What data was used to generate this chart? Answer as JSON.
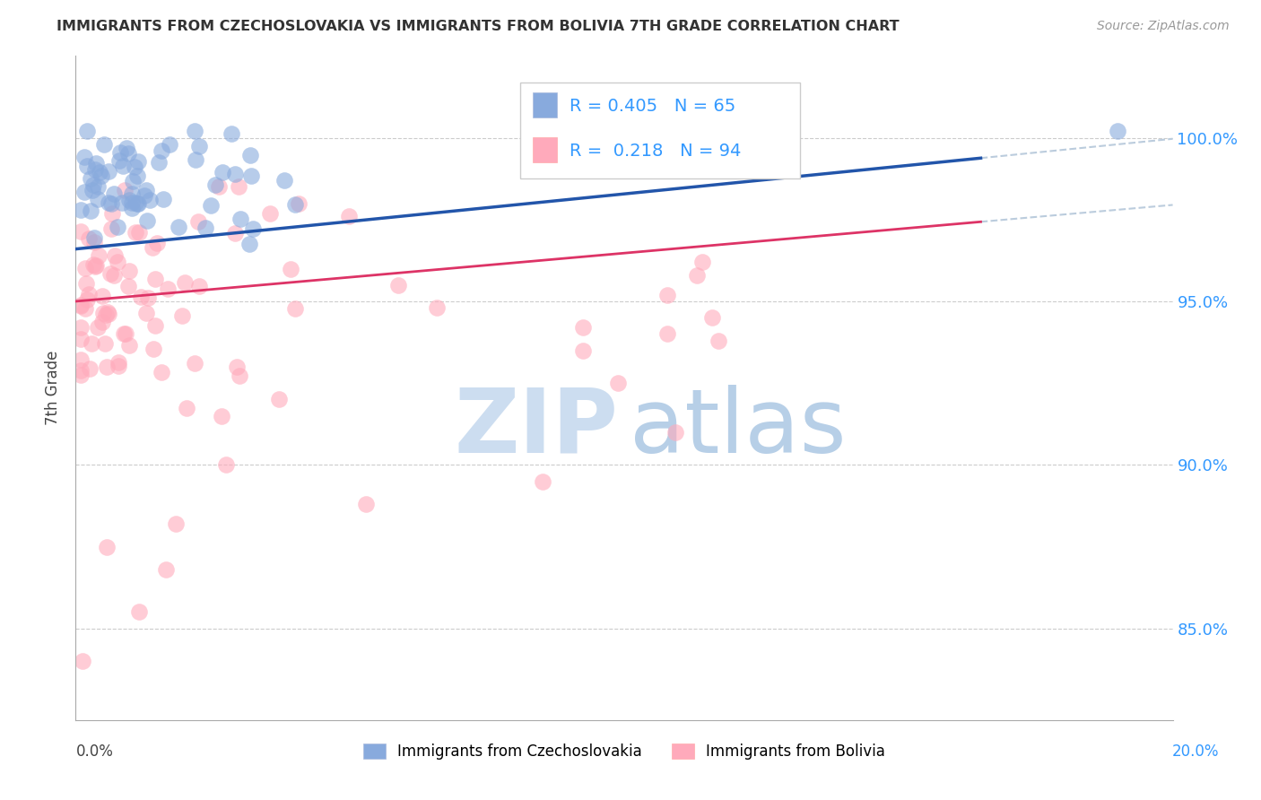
{
  "title": "IMMIGRANTS FROM CZECHOSLOVAKIA VS IMMIGRANTS FROM BOLIVIA 7TH GRADE CORRELATION CHART",
  "source": "Source: ZipAtlas.com",
  "ylabel": "7th Grade",
  "ytick_labels": [
    "85.0%",
    "90.0%",
    "95.0%",
    "100.0%"
  ],
  "ytick_values": [
    0.85,
    0.9,
    0.95,
    1.0
  ],
  "xlim": [
    0.0,
    0.2
  ],
  "ylim": [
    0.822,
    1.025
  ],
  "color_czech": "#88aadd",
  "color_bolivia": "#ffaabb",
  "color_trendline_czech": "#2255aa",
  "color_trendline_bolivia": "#dd3366",
  "color_dashed": "#bbccdd",
  "watermark_zip_color": "#ccddf0",
  "watermark_atlas_color": "#99bbdd",
  "legend_box_color": "#eeeeee",
  "grid_color": "#cccccc",
  "right_tick_color": "#3399ff",
  "title_color": "#333333",
  "source_color": "#999999"
}
